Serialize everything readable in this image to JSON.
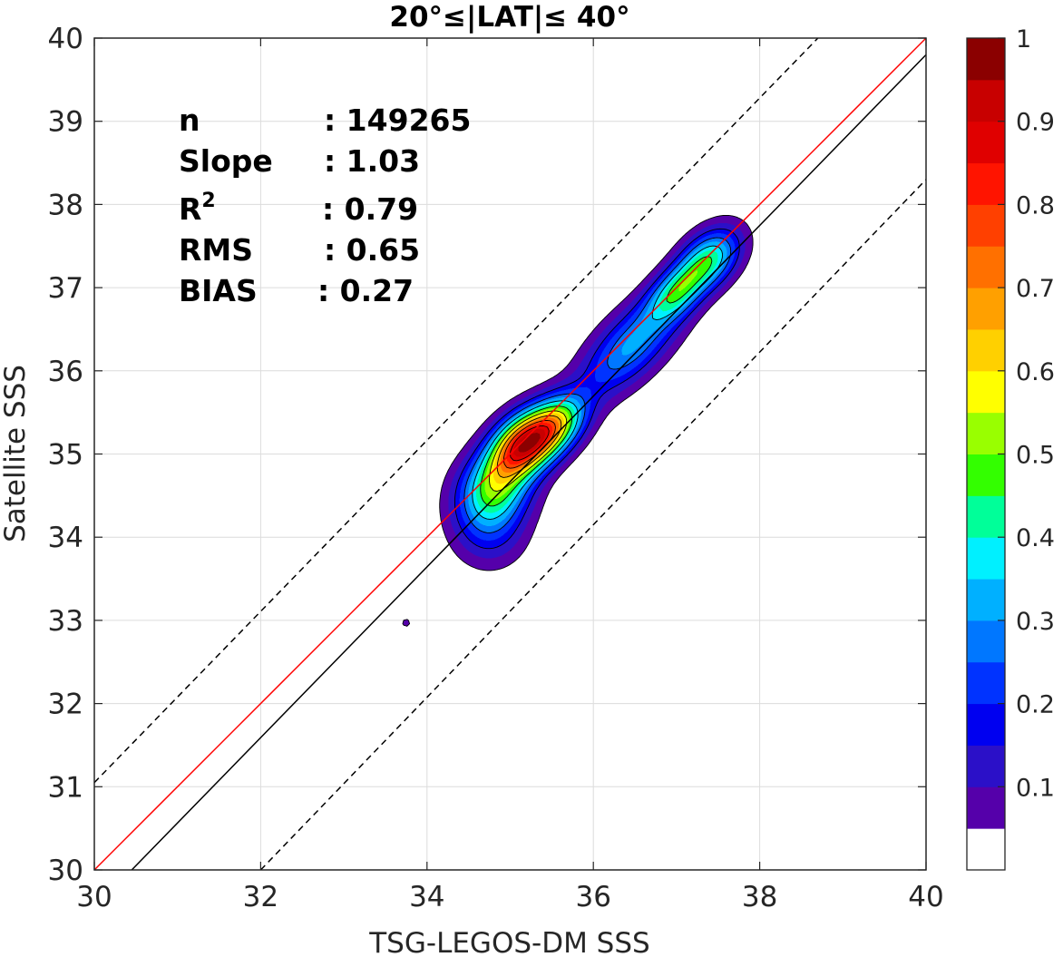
{
  "chart_data": {
    "type": "contour",
    "title": "20°≤|LAT|≤ 40°",
    "xlabel": "TSG-LEGOS-DM SSS",
    "ylabel": "Satellite SSS",
    "xlim": [
      30,
      40
    ],
    "ylim": [
      30,
      40
    ],
    "xticks": [
      "30",
      "32",
      "34",
      "36",
      "38",
      "40"
    ],
    "yticks": [
      "30",
      "31",
      "32",
      "33",
      "34",
      "35",
      "36",
      "37",
      "38",
      "39",
      "40"
    ],
    "grid": true,
    "stats": [
      {
        "label": "n",
        "value": ": 149265"
      },
      {
        "label": "Slope",
        "value": ": 1.03"
      },
      {
        "label": "R",
        "sup": "2",
        "value": ": 0.79"
      },
      {
        "label": "RMS",
        "value": ": 0.65"
      },
      {
        "label": "BIAS",
        "value": ": 0.27"
      }
    ],
    "lines": [
      {
        "name": "one-to-one",
        "color": "#ff0000",
        "style": "solid",
        "points": [
          [
            30,
            30
          ],
          [
            40,
            40
          ]
        ]
      },
      {
        "name": "regression",
        "color": "#000000",
        "style": "solid",
        "points": [
          [
            30.45,
            30
          ],
          [
            40,
            39.8
          ]
        ]
      },
      {
        "name": "upper-bound",
        "color": "#000000",
        "style": "dashed",
        "points": [
          [
            30,
            31.05
          ],
          [
            38.7,
            40
          ]
        ]
      },
      {
        "name": "lower-bound",
        "color": "#000000",
        "style": "dashed",
        "points": [
          [
            32,
            30
          ],
          [
            40,
            38.3
          ]
        ]
      }
    ],
    "density": {
      "peak": [
        35.1,
        35.05
      ],
      "secondary_peak": [
        37.35,
        37.35
      ],
      "isolated_spot": [
        33.75,
        32.97
      ],
      "contour_levels": [
        0.05,
        0.1,
        0.15,
        0.2,
        0.25,
        0.3,
        0.35,
        0.4,
        0.45,
        0.5,
        0.55,
        0.6,
        0.65,
        0.7,
        0.75,
        0.8,
        0.85,
        0.9,
        0.95,
        1.0
      ]
    },
    "colorbar": {
      "ticks": [
        "0.1",
        "0.2",
        "0.3",
        "0.4",
        "0.5",
        "0.6",
        "0.7",
        "0.8",
        "0.9",
        "1"
      ],
      "tick_values": [
        0.1,
        0.2,
        0.3,
        0.4,
        0.5,
        0.6,
        0.7,
        0.8,
        0.9,
        1.0
      ],
      "colors": [
        "#ffffff",
        "#5500aa",
        "#2b10c8",
        "#0000f0",
        "#0033ff",
        "#0077ff",
        "#00b0ff",
        "#00f0ff",
        "#00ff99",
        "#33ff00",
        "#99ff00",
        "#ffff00",
        "#ffd000",
        "#ffa000",
        "#ff7000",
        "#ff4000",
        "#ff1400",
        "#e00000",
        "#c80000",
        "#8b0000"
      ]
    }
  }
}
